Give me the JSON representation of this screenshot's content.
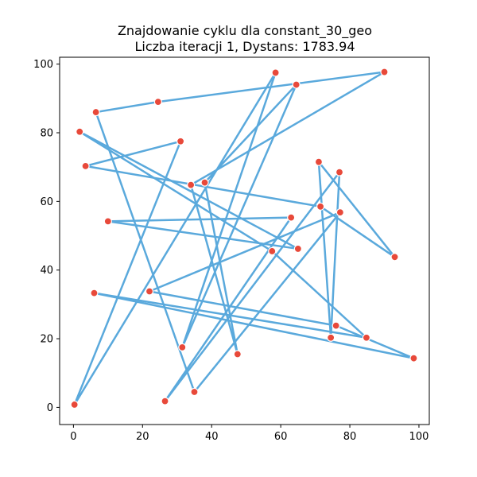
{
  "chart_data": {
    "type": "scatter",
    "title_line1": "Znajdowanie cyklu dla constant_30_geo",
    "title_line2": "Liczba iteracji 1, Dystans: 1783.94",
    "xlabel": "",
    "ylabel": "",
    "xlim": [
      -4,
      103
    ],
    "ylim": [
      -5,
      102
    ],
    "x_ticks": [
      0,
      20,
      40,
      60,
      80,
      100
    ],
    "y_ticks": [
      0,
      20,
      40,
      60,
      80,
      100
    ],
    "grid": false,
    "colors": {
      "path": "#5aa9dc",
      "point": "#e8493a",
      "point_edge": "#ffffff"
    },
    "points": [
      {
        "x": 0.3,
        "y": 0.8
      },
      {
        "x": 31.0,
        "y": 77.5
      },
      {
        "x": 3.5,
        "y": 70.3
      },
      {
        "x": 71.5,
        "y": 58.5
      },
      {
        "x": 93.0,
        "y": 43.8
      },
      {
        "x": 71.0,
        "y": 71.5
      },
      {
        "x": 74.5,
        "y": 20.3
      },
      {
        "x": 77.0,
        "y": 68.5
      },
      {
        "x": 26.5,
        "y": 1.8
      },
      {
        "x": 63.0,
        "y": 55.3
      },
      {
        "x": 10.0,
        "y": 54.2
      },
      {
        "x": 65.0,
        "y": 46.2
      },
      {
        "x": 1.8,
        "y": 80.3
      },
      {
        "x": 57.5,
        "y": 45.5
      },
      {
        "x": 84.8,
        "y": 20.3
      },
      {
        "x": 6.0,
        "y": 33.3
      },
      {
        "x": 98.5,
        "y": 14.3
      },
      {
        "x": 76.0,
        "y": 23.8
      },
      {
        "x": 22.0,
        "y": 33.8
      },
      {
        "x": 77.2,
        "y": 56.8
      },
      {
        "x": 35.0,
        "y": 4.5
      },
      {
        "x": 6.5,
        "y": 86.0
      },
      {
        "x": 24.5,
        "y": 89.0
      },
      {
        "x": 90.0,
        "y": 97.7
      },
      {
        "x": 34.0,
        "y": 64.8
      },
      {
        "x": 47.5,
        "y": 15.5
      },
      {
        "x": 38.0,
        "y": 65.5
      },
      {
        "x": 64.5,
        "y": 94.0
      },
      {
        "x": 31.5,
        "y": 17.5
      },
      {
        "x": 58.5,
        "y": 97.5
      }
    ]
  }
}
